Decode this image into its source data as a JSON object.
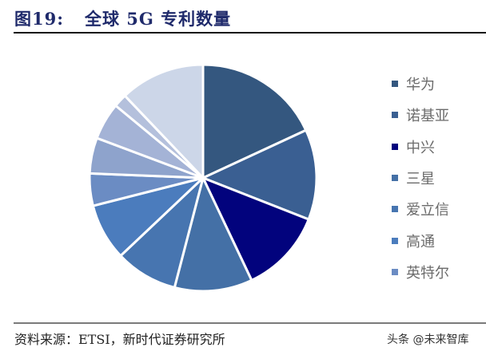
{
  "figure": {
    "number": "图19:",
    "title": "全球 5G 专利数量"
  },
  "source": "资料来源：ETSI，新时代证券研究所",
  "watermark": "头条 @未来智库",
  "chart_data": {
    "type": "pie",
    "title": "全球 5G 专利数量",
    "start_angle_deg": 0,
    "direction": "clockwise",
    "center": [
      254,
      223
    ],
    "radius": 142,
    "legend_position": "right",
    "unit": "approx. share %",
    "categories": [
      "华为",
      "诺基亚",
      "中兴",
      "三星",
      "爱立信",
      "高通",
      "英特尔",
      "",
      "",
      "",
      ""
    ],
    "values": [
      18.1,
      12.9,
      12.0,
      11.1,
      8.9,
      8.1,
      4.6,
      5.1,
      5.3,
      1.9,
      12.1
    ],
    "colors": [
      "#34577f",
      "#3a5f92",
      "#02037d",
      "#4470a6",
      "#4775b0",
      "#4b7cbd",
      "#6b8cc3",
      "#8ea3cc",
      "#a4b3d6",
      "#b4c0dc",
      "#ccd6e8"
    ]
  },
  "legend": {
    "items": [
      {
        "label": "华为",
        "color": "#34577f"
      },
      {
        "label": "诺基亚",
        "color": "#3a5f92"
      },
      {
        "label": "中兴",
        "color": "#02037d"
      },
      {
        "label": "三星",
        "color": "#4470a6"
      },
      {
        "label": "爱立信",
        "color": "#4775b0"
      },
      {
        "label": "高通",
        "color": "#4b7cbd"
      },
      {
        "label": "英特尔",
        "color": "#6b8cc3"
      }
    ]
  }
}
